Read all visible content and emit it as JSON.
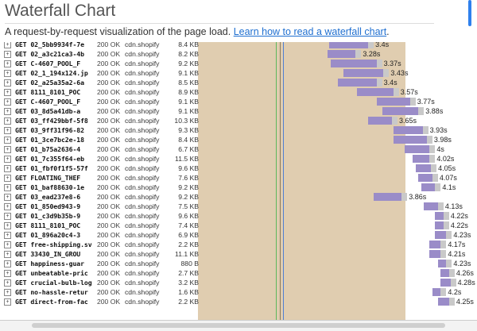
{
  "header": {
    "title": "Waterfall Chart",
    "description": "A request-by-request visualization of the page load.",
    "link_text": "Learn how to read a waterfall chart",
    "link_suffix": "."
  },
  "colors": {
    "waiting": "#9a8cc8",
    "receiving": "#c9c9c9",
    "background": "#e0cdb0",
    "green_marker": "#5cb85c",
    "blue_marker": "#4f7fd4"
  },
  "rows": [
    {
      "request": "GET 02_5bb9934f-7e",
      "status": "200 OK",
      "domain": "cdn.shopify",
      "size": "8.4 KB",
      "duration": "3.4s",
      "start_pct": 0.47,
      "wait_pct": 0.14,
      "recv_pct": 0.02,
      "partial": true
    },
    {
      "request": "GET 02_a3c21ca3-4b",
      "status": "200 OK",
      "domain": "cdn.shopify",
      "size": "8.2 KB",
      "duration": "3.28s",
      "start_pct": 0.465,
      "wait_pct": 0.1,
      "recv_pct": 0.02
    },
    {
      "request": "GET C-4607_POOL_F",
      "status": "200 OK",
      "domain": "cdn.shopify",
      "size": "9.2 KB",
      "duration": "3.37s",
      "start_pct": 0.475,
      "wait_pct": 0.165,
      "recv_pct": 0.02
    },
    {
      "request": "GET 02_1_194x124.jp",
      "status": "200 OK",
      "domain": "cdn.shopify",
      "size": "9.1 KB",
      "duration": "3.43s",
      "start_pct": 0.52,
      "wait_pct": 0.145,
      "recv_pct": 0.02
    },
    {
      "request": "GET 02_a25a35a2-6a",
      "status": "200 OK",
      "domain": "cdn.shopify",
      "size": "8.5 KB",
      "duration": "3.4s",
      "start_pct": 0.5,
      "wait_pct": 0.14,
      "recv_pct": 0.02
    },
    {
      "request": "GET 8111_8101_POC",
      "status": "200 OK",
      "domain": "cdn.shopify",
      "size": "8.9 KB",
      "duration": "3.57s",
      "start_pct": 0.57,
      "wait_pct": 0.13,
      "recv_pct": 0.02
    },
    {
      "request": "GET C-4607_POOL_F",
      "status": "200 OK",
      "domain": "cdn.shopify",
      "size": "9.1 KB",
      "duration": "3.77s",
      "start_pct": 0.64,
      "wait_pct": 0.12,
      "recv_pct": 0.02
    },
    {
      "request": "GET 03_8d5a41db-a",
      "status": "200 OK",
      "domain": "cdn.shopify",
      "size": "9.1 KB",
      "duration": "3.88s",
      "start_pct": 0.66,
      "wait_pct": 0.13,
      "recv_pct": 0.02
    },
    {
      "request": "GET 03_ff429bbf-5f8",
      "status": "200 OK",
      "domain": "cdn.shopify",
      "size": "10.3 KB",
      "duration": "3.65s",
      "start_pct": 0.61,
      "wait_pct": 0.085,
      "recv_pct": 0.02
    },
    {
      "request": "GET 03_9ff31f96-82",
      "status": "200 OK",
      "domain": "cdn.shopify",
      "size": "9.3 KB",
      "duration": "3.93s",
      "start_pct": 0.7,
      "wait_pct": 0.105,
      "recv_pct": 0.02
    },
    {
      "request": "GET 01_3ce7bc2e-18",
      "status": "200 OK",
      "domain": "cdn.shopify",
      "size": "8.4 KB",
      "duration": "3.98s",
      "start_pct": 0.7,
      "wait_pct": 0.12,
      "recv_pct": 0.02
    },
    {
      "request": "GET 01_b75a2636-4",
      "status": "200 OK",
      "domain": "cdn.shopify",
      "size": "6.7 KB",
      "duration": "4s",
      "start_pct": 0.74,
      "wait_pct": 0.09,
      "recv_pct": 0.02
    },
    {
      "request": "GET 01_7c355f64-eb",
      "status": "200 OK",
      "domain": "cdn.shopify",
      "size": "11.5 KB",
      "duration": "4.02s",
      "start_pct": 0.77,
      "wait_pct": 0.06,
      "recv_pct": 0.02
    },
    {
      "request": "GET 01_fbf0f1f5-57f",
      "status": "200 OK",
      "domain": "cdn.shopify",
      "size": "9.6 KB",
      "duration": "4.05s",
      "start_pct": 0.78,
      "wait_pct": 0.055,
      "recv_pct": 0.02
    },
    {
      "request": "GET FLOATING_THEF",
      "status": "200 OK",
      "domain": "cdn.shopify",
      "size": "7.6 KB",
      "duration": "4.07s",
      "start_pct": 0.79,
      "wait_pct": 0.05,
      "recv_pct": 0.02
    },
    {
      "request": "GET 01_baf88630-1e",
      "status": "200 OK",
      "domain": "cdn.shopify",
      "size": "9.2 KB",
      "duration": "4.1s",
      "start_pct": 0.8,
      "wait_pct": 0.05,
      "recv_pct": 0.02
    },
    {
      "request": "GET 03_ead237e8-6",
      "status": "200 OK",
      "domain": "cdn.shopify",
      "size": "9.2 KB",
      "duration": "3.86s",
      "start_pct": 0.63,
      "wait_pct": 0.1,
      "recv_pct": 0.02
    },
    {
      "request": "GET 01_850ed943-9",
      "status": "200 OK",
      "domain": "cdn.shopify",
      "size": "7.5 KB",
      "duration": "4.13s",
      "start_pct": 0.81,
      "wait_pct": 0.05,
      "recv_pct": 0.02
    },
    {
      "request": "GET 01_c3d9b35b-9",
      "status": "200 OK",
      "domain": "cdn.shopify",
      "size": "9.6 KB",
      "duration": "4.22s",
      "start_pct": 0.85,
      "wait_pct": 0.03,
      "recv_pct": 0.02
    },
    {
      "request": "GET 8111_8101_POC",
      "status": "200 OK",
      "domain": "cdn.shopify",
      "size": "7.4 KB",
      "duration": "4.22s",
      "start_pct": 0.85,
      "wait_pct": 0.03,
      "recv_pct": 0.02
    },
    {
      "request": "GET 01_896a20c4-3",
      "status": "200 OK",
      "domain": "cdn.shopify",
      "size": "6.9 KB",
      "duration": "4.23s",
      "start_pct": 0.85,
      "wait_pct": 0.04,
      "recv_pct": 0.02
    },
    {
      "request": "GET free-shipping.sv",
      "status": "200 OK",
      "domain": "cdn.shopify",
      "size": "2.2 KB",
      "duration": "4.17s",
      "start_pct": 0.83,
      "wait_pct": 0.04,
      "recv_pct": 0.02
    },
    {
      "request": "GET 33430_IN_GROU",
      "status": "200 OK",
      "domain": "cdn.shopify",
      "size": "11.1 KB",
      "duration": "4.21s",
      "start_pct": 0.83,
      "wait_pct": 0.04,
      "recv_pct": 0.02
    },
    {
      "request": "GET happiness-guar",
      "status": "200 OK",
      "domain": "cdn.shopify",
      "size": "880 B",
      "duration": "4.23s",
      "start_pct": 0.86,
      "wait_pct": 0.03,
      "recv_pct": 0.02
    },
    {
      "request": "GET unbeatable-pric",
      "status": "200 OK",
      "domain": "cdn.shopify",
      "size": "2.7 KB",
      "duration": "4.26s",
      "start_pct": 0.87,
      "wait_pct": 0.03,
      "recv_pct": 0.02
    },
    {
      "request": "GET crucial-bulb-log",
      "status": "200 OK",
      "domain": "cdn.shopify",
      "size": "3.2 KB",
      "duration": "4.28s",
      "start_pct": 0.87,
      "wait_pct": 0.035,
      "recv_pct": 0.02
    },
    {
      "request": "GET no-hassle-retur",
      "status": "200 OK",
      "domain": "cdn.shopify",
      "size": "1.6 KB",
      "duration": "4.2s",
      "start_pct": 0.84,
      "wait_pct": 0.03,
      "recv_pct": 0.02
    },
    {
      "request": "GET direct-from-fac",
      "status": "200 OK",
      "domain": "cdn.shopify",
      "size": "2.2 KB",
      "duration": "4.25s",
      "start_pct": 0.86,
      "wait_pct": 0.04,
      "recv_pct": 0.02
    }
  ]
}
